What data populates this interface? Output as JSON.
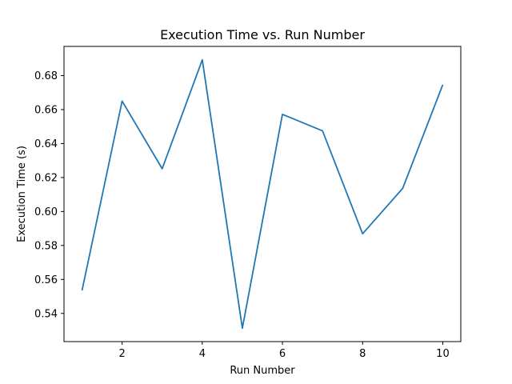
{
  "chart_data": {
    "type": "line",
    "title": "Execution Time vs. Run Number",
    "xlabel": "Run Number",
    "ylabel": "Execution Time (s)",
    "x": [
      1,
      2,
      3,
      4,
      5,
      6,
      7,
      8,
      9,
      10
    ],
    "series": [
      {
        "values": [
          0.5535,
          0.665,
          0.6252,
          0.6893,
          0.5313,
          0.6572,
          0.6475,
          0.5869,
          0.6136,
          0.6746
        ],
        "color": "#1f77b4"
      }
    ],
    "xlim": [
      0.55,
      10.45
    ],
    "ylim": [
      0.5234,
      0.6972
    ],
    "xticks": [
      2,
      4,
      6,
      8,
      10
    ],
    "xtick_labels": [
      "2",
      "4",
      "6",
      "8",
      "10"
    ],
    "yticks": [
      0.54,
      0.56,
      0.58,
      0.6,
      0.62,
      0.64,
      0.66,
      0.68
    ],
    "ytick_labels": [
      "0.54",
      "0.56",
      "0.58",
      "0.60",
      "0.62",
      "0.64",
      "0.66",
      "0.68"
    ],
    "grid": false,
    "legend": false
  }
}
